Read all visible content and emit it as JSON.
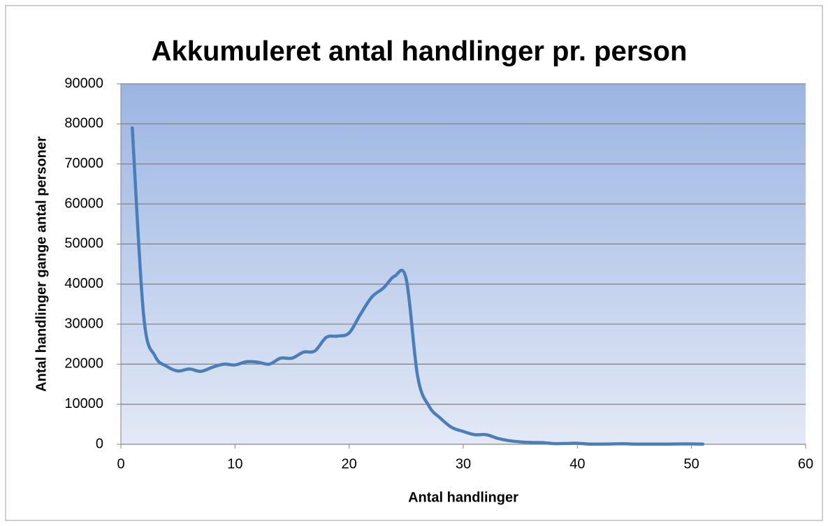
{
  "chart_data": {
    "type": "line",
    "title": "Akkumuleret antal handlinger pr. person",
    "xlabel": "Antal handlinger",
    "ylabel": "Antal handlinger gange antal personer",
    "x": [
      1,
      2,
      3,
      4,
      5,
      6,
      7,
      8,
      9,
      10,
      11,
      12,
      13,
      14,
      15,
      16,
      17,
      18,
      19,
      20,
      21,
      22,
      23,
      24,
      25,
      26,
      27,
      28,
      29,
      30,
      31,
      32,
      33,
      34,
      35,
      36,
      37,
      38,
      39,
      40,
      41,
      42,
      43,
      44,
      45,
      46,
      47,
      48,
      49,
      50,
      51
    ],
    "values": [
      79000,
      32000,
      22000,
      19500,
      18300,
      18800,
      18200,
      19200,
      20000,
      19800,
      20600,
      20500,
      20000,
      21500,
      21500,
      23000,
      23300,
      26700,
      27000,
      27800,
      32500,
      36800,
      39000,
      42000,
      41300,
      17000,
      9500,
      6500,
      4200,
      3200,
      2400,
      2400,
      1500,
      900,
      600,
      450,
      400,
      150,
      200,
      250,
      50,
      50,
      80,
      120,
      50,
      50,
      50,
      50,
      80,
      80,
      50
    ],
    "color": "#4a7ebb",
    "xlim": [
      0,
      60
    ],
    "xticks": [
      0,
      10,
      20,
      30,
      40,
      50,
      60
    ],
    "ylim": [
      0,
      90000
    ],
    "yticks": [
      0,
      10000,
      20000,
      30000,
      40000,
      50000,
      60000,
      70000,
      80000,
      90000
    ],
    "grid": true
  }
}
